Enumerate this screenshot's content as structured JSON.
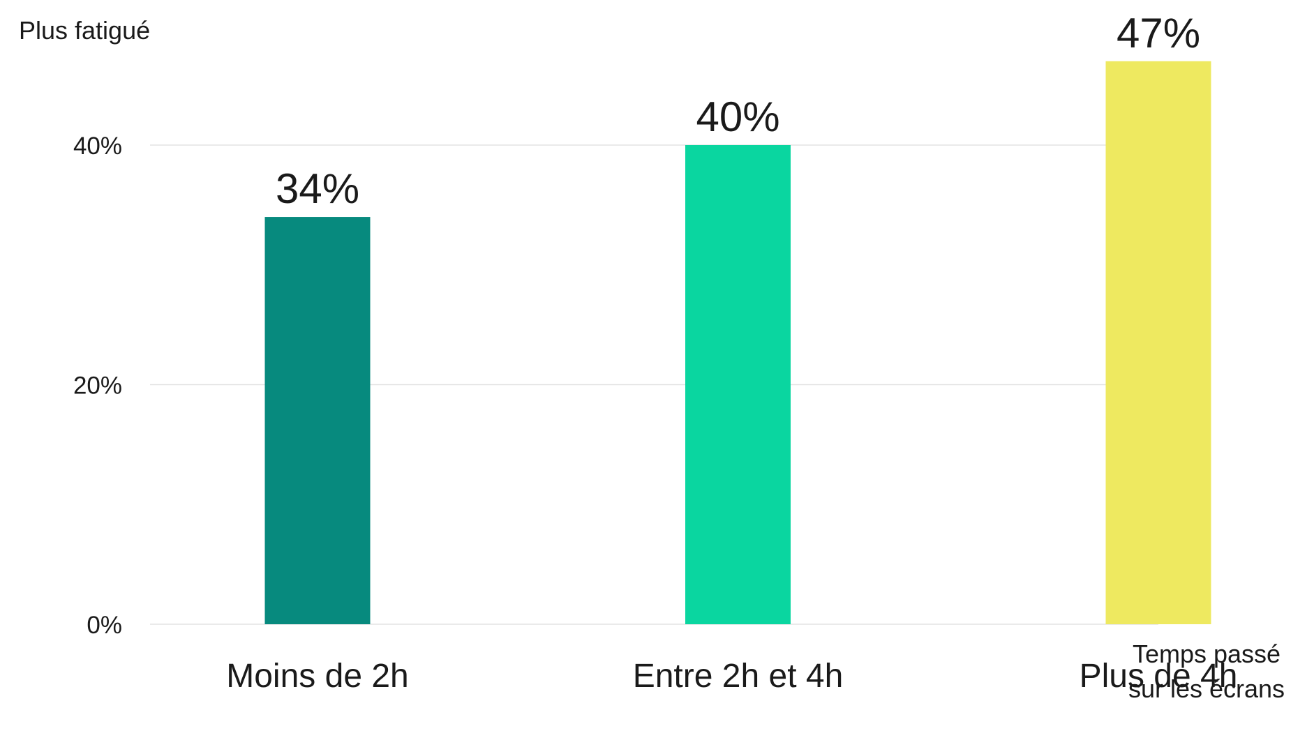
{
  "chart_data": {
    "type": "bar",
    "ylabel": "Plus fatigué",
    "xlabel_lines": [
      "Temps passé",
      "sur les écrans"
    ],
    "categories": [
      "Moins de 2h",
      "Entre 2h et 4h",
      "Plus de 4h"
    ],
    "values": [
      34,
      40,
      47
    ],
    "value_labels": [
      "34%",
      "40%",
      "47%"
    ],
    "colors": [
      "#078A7E",
      "#0AD6A0",
      "#EEE960"
    ],
    "ylim": [
      0,
      47
    ],
    "yticks": [
      0,
      20,
      40
    ],
    "ytick_labels": [
      "0%",
      "20%",
      "40%"
    ],
    "grid": true
  }
}
